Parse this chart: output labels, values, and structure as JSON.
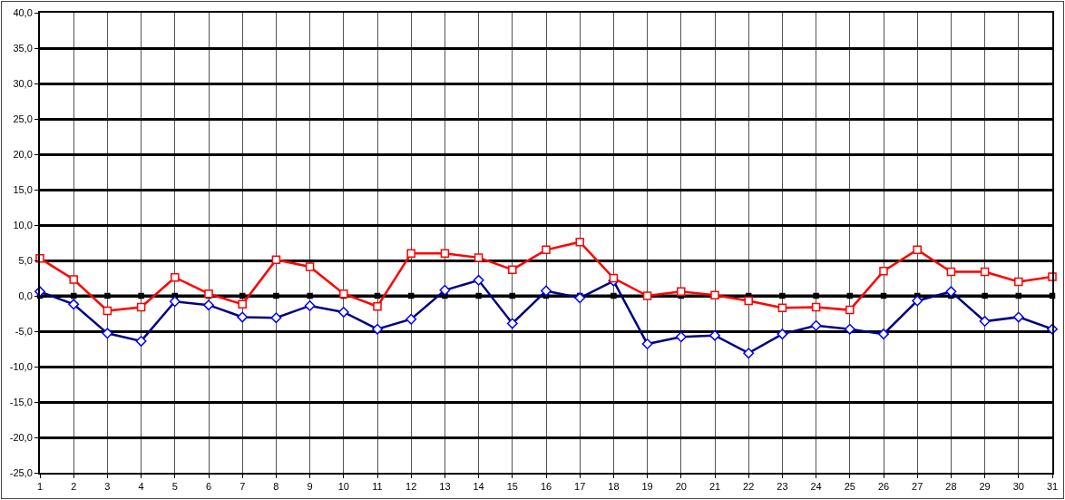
{
  "chart_data": {
    "type": "line",
    "x": [
      1,
      2,
      3,
      4,
      5,
      6,
      7,
      8,
      9,
      10,
      11,
      12,
      13,
      14,
      15,
      16,
      17,
      18,
      19,
      20,
      21,
      22,
      23,
      24,
      25,
      26,
      27,
      28,
      29,
      30,
      31
    ],
    "series": [
      {
        "color": "#000000",
        "marker": "square",
        "values": [
          0,
          0,
          0,
          0,
          0,
          0,
          0,
          0,
          0,
          0,
          0,
          0,
          0,
          0,
          0,
          0,
          0,
          0,
          0,
          0,
          0,
          0,
          0,
          0,
          0,
          0,
          0,
          0,
          0,
          0,
          0
        ]
      },
      {
        "color": "#000080",
        "marker": "diamond",
        "values": [
          0.6,
          -1.2,
          -5.3,
          -6.4,
          -0.8,
          -1.3,
          -3.0,
          -3.1,
          -1.4,
          -2.3,
          -4.7,
          -3.3,
          0.8,
          2.2,
          -3.9,
          0.7,
          -0.3,
          2.1,
          -6.8,
          -5.8,
          -5.6,
          -8.1,
          -5.4,
          -4.2,
          -4.7,
          -5.4,
          -0.7,
          0.6,
          -3.6,
          -3.0,
          -4.7
        ]
      },
      {
        "color": "#ff0000",
        "marker": "square",
        "values": [
          5.3,
          2.3,
          -2.1,
          -1.6,
          2.6,
          0.3,
          -1.2,
          5.1,
          4.1,
          0.3,
          -1.5,
          6.0,
          6.0,
          5.4,
          3.7,
          6.5,
          7.6,
          2.5,
          0.0,
          0.6,
          0.1,
          -0.7,
          -1.7,
          -1.6,
          -2.0,
          3.5,
          6.5,
          3.4,
          3.4,
          2.0,
          2.7
        ]
      }
    ],
    "xlim": [
      1,
      31
    ],
    "xticks": [
      1,
      2,
      3,
      4,
      5,
      6,
      7,
      8,
      9,
      10,
      11,
      12,
      13,
      14,
      15,
      16,
      17,
      18,
      19,
      20,
      21,
      22,
      23,
      24,
      25,
      26,
      27,
      28,
      29,
      30,
      31
    ],
    "ylim": [
      -25,
      40
    ],
    "yticks": [
      {
        "value": -25,
        "label": "-25,0"
      },
      {
        "value": -20,
        "label": "-20,0"
      },
      {
        "value": -15,
        "label": "-15,0"
      },
      {
        "value": -10,
        "label": "-10,0"
      },
      {
        "value": -5,
        "label": "-5,0"
      },
      {
        "value": 0,
        "label": "0,0"
      },
      {
        "value": 5,
        "label": "5,0"
      },
      {
        "value": 10,
        "label": "10,0"
      },
      {
        "value": 15,
        "label": "15,0"
      },
      {
        "value": 20,
        "label": "20,0"
      },
      {
        "value": 25,
        "label": "25,0"
      },
      {
        "value": 30,
        "label": "30,0"
      },
      {
        "value": 35,
        "label": "35,0"
      },
      {
        "value": 40,
        "label": "40,0"
      }
    ],
    "grid": true,
    "line_style": "solid"
  }
}
